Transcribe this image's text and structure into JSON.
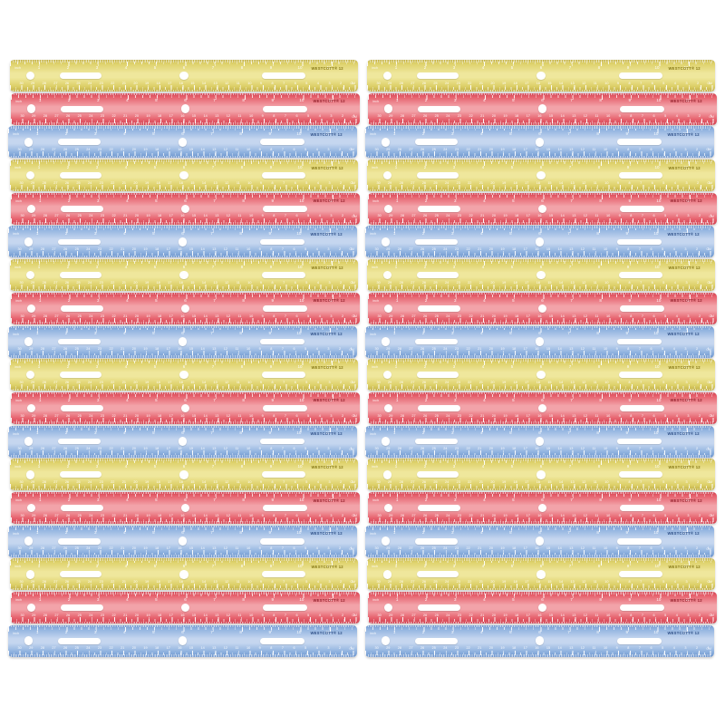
{
  "image": {
    "type": "product-photo",
    "description": "Two columns of stacked translucent plastic 12-inch rulers in a repeating yellow, red, blue pattern",
    "background_color": "#ffffff"
  },
  "product": {
    "brand_line": "WESTCOTT® 12",
    "unit_top_label": "inch",
    "unit_bottom_label": "CM"
  },
  "layout": {
    "columns": 2,
    "rulers_per_column": 18,
    "total_rulers": 36,
    "color_pattern": [
      "yellow",
      "red",
      "blue"
    ]
  },
  "ruler_colors": {
    "yellow": {
      "edge": "#c0ae43",
      "base": "#ddd069",
      "light": "#efe79c",
      "brand_text": "#857714"
    },
    "red": {
      "edge": "#d04352",
      "base": "#e65f6b",
      "light": "#f2a3a9",
      "brand_text": "#93202c"
    },
    "blue": {
      "edge": "#6e96ce",
      "base": "#8fb2df",
      "light": "#c5d6ef",
      "brand_text": "#2e4f87"
    }
  },
  "scales": {
    "inch_numbers": [
      1,
      2,
      3,
      4,
      5,
      6,
      7,
      8,
      9,
      10,
      11
    ],
    "inch_divisions_per_ruler": 12,
    "cm_numbers": [
      30,
      29,
      28,
      27,
      26,
      25,
      24,
      23,
      22,
      21,
      20,
      19,
      18,
      17,
      16,
      15,
      14,
      13,
      12,
      11,
      10,
      9,
      8,
      7,
      6,
      5,
      4,
      3,
      2,
      1
    ],
    "cm_divisions_per_ruler": 30.5
  }
}
